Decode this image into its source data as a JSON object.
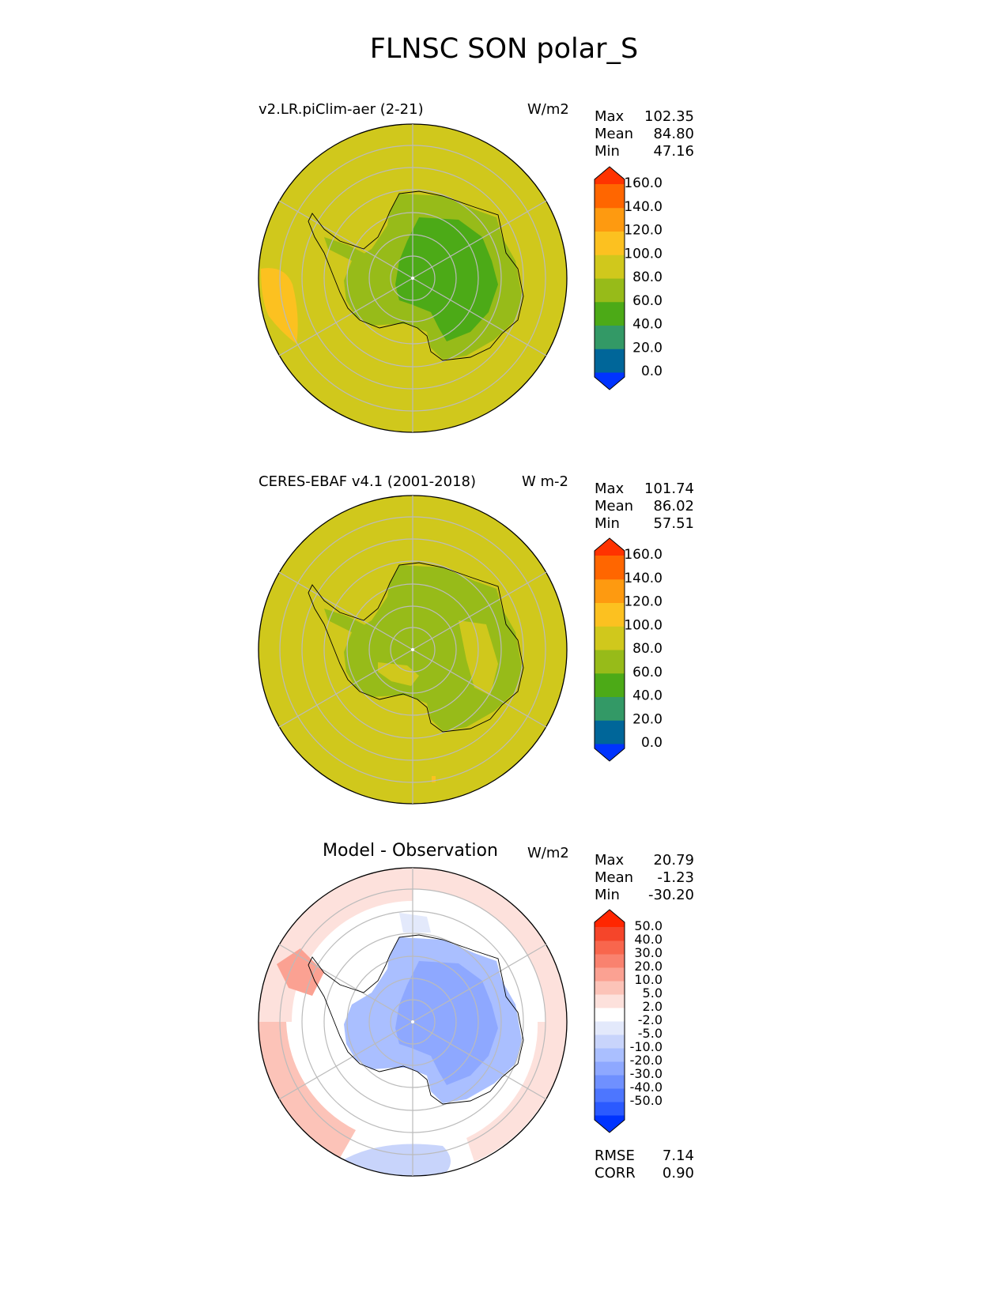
{
  "title": "FLNSC SON polar_S",
  "panels": [
    {
      "label_left": "v2.LR.piClim-aer (2-21)",
      "label_right": "W/m2",
      "stats": [
        {
          "name": "Max",
          "value": "102.35"
        },
        {
          "name": "Mean",
          "value": "84.80"
        },
        {
          "name": "Min",
          "value": "47.16"
        }
      ]
    },
    {
      "label_left": "CERES-EBAF v4.1 (2001-2018)",
      "label_right": "W m-2",
      "stats": [
        {
          "name": "Max",
          "value": "101.74"
        },
        {
          "name": "Mean",
          "value": "86.02"
        },
        {
          "name": "Min",
          "value": "57.51"
        }
      ]
    },
    {
      "label_center": "Model - Observation",
      "label_right": "W/m2",
      "stats": [
        {
          "name": "Max",
          "value": "20.79"
        },
        {
          "name": "Mean",
          "value": "-1.23"
        },
        {
          "name": "Min",
          "value": "-30.20"
        }
      ],
      "metrics": [
        {
          "name": "RMSE",
          "value": "7.14"
        },
        {
          "name": "CORR",
          "value": "0.90"
        }
      ]
    }
  ],
  "colorbar_abs": {
    "ticks": [
      "160.0",
      "140.0",
      "120.0",
      "100.0",
      "80.0",
      "60.0",
      "40.0",
      "20.0",
      "0.0"
    ],
    "colors": [
      "#0033ff",
      "#006699",
      "#339966",
      "#4caa17",
      "#97bb19",
      "#d0c81c",
      "#fcc120",
      "#fe9a10",
      "#ff6600",
      "#ff3300"
    ]
  },
  "colorbar_diff": {
    "ticks": [
      "50.0",
      "40.0",
      "30.0",
      "20.0",
      "10.0",
      "5.0",
      "2.0",
      "-2.0",
      "-5.0",
      "-10.0",
      "-20.0",
      "-30.0",
      "-40.0",
      "-50.0"
    ],
    "colors": [
      "#0033ff",
      "#2b5aff",
      "#4d76ff",
      "#6f90ff",
      "#8ea8ff",
      "#aabfff",
      "#c8d4fb",
      "#e3e9fb",
      "#ffffff",
      "#fde1dc",
      "#fcc3b8",
      "#fba192",
      "#f9826f",
      "#f8664d",
      "#f5452a",
      "#ff2600"
    ]
  }
}
